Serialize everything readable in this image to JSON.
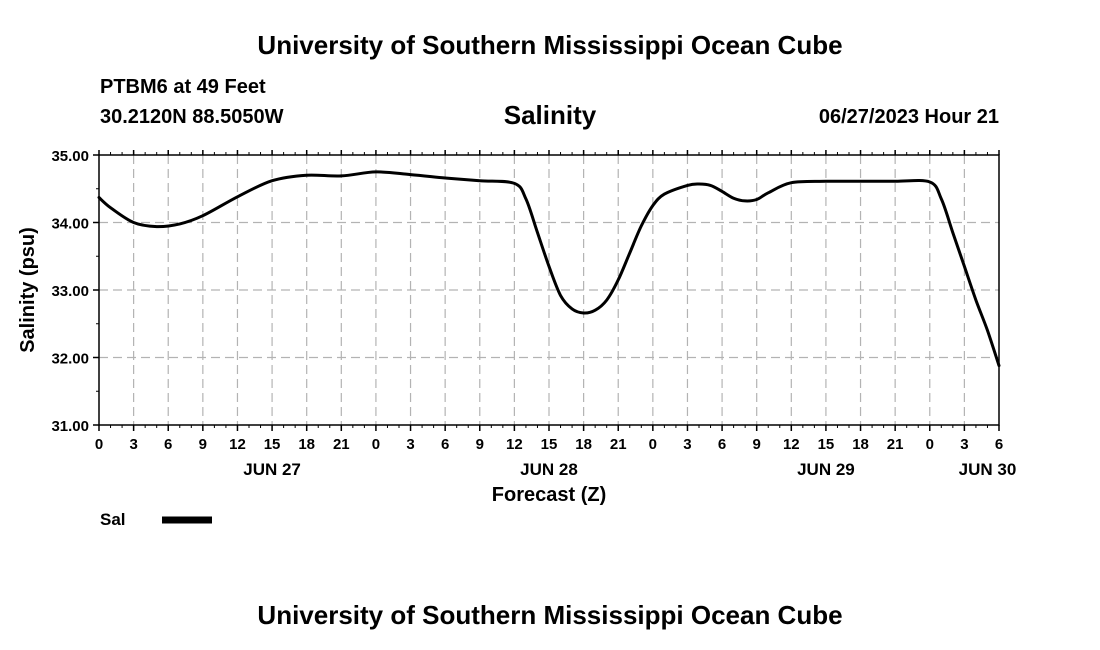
{
  "header": {
    "title": "University of Southern Mississippi Ocean Cube",
    "station": "PTBM6 at 49 Feet",
    "coords": "30.2120N  88.5050W",
    "datetime": "06/27/2023 Hour 21"
  },
  "footer": {
    "title": "University of Southern Mississippi Ocean Cube"
  },
  "legend": {
    "label": "Sal",
    "color": "#000000"
  },
  "chart_data": {
    "type": "line",
    "title": "Salinity",
    "xlabel": "Forecast (Z)",
    "ylabel": "Salinity (psu)",
    "xlim": [
      0,
      78
    ],
    "ylim": [
      31.0,
      35.0
    ],
    "grid": true,
    "y_ticks": [
      "31.00",
      "32.00",
      "33.00",
      "34.00",
      "35.00"
    ],
    "x_ticks": [
      "0",
      "3",
      "6",
      "9",
      "12",
      "15",
      "18",
      "21",
      "0",
      "3",
      "6",
      "9",
      "12",
      "15",
      "18",
      "21",
      "0",
      "3",
      "6",
      "9",
      "12",
      "15",
      "18",
      "21",
      "0",
      "3",
      "6"
    ],
    "date_labels": [
      {
        "hour": 15,
        "label": "JUN 27"
      },
      {
        "hour": 39,
        "label": "JUN 28"
      },
      {
        "hour": 63,
        "label": "JUN 29"
      },
      {
        "hour": 77,
        "label": "JUN 30"
      }
    ],
    "series": [
      {
        "name": "Sal",
        "x": [
          0,
          1,
          3,
          5,
          7,
          9,
          12,
          15,
          18,
          21,
          24,
          27,
          30,
          33,
          36,
          37,
          38,
          39,
          40,
          41,
          42,
          43,
          44,
          45,
          46,
          47,
          48,
          49,
          51,
          52,
          53,
          54,
          55,
          56,
          57,
          58,
          60,
          63,
          66,
          69,
          72,
          73,
          74,
          75,
          76,
          77,
          78
        ],
        "values": [
          34.37,
          34.22,
          34.0,
          33.94,
          33.98,
          34.1,
          34.38,
          34.62,
          34.7,
          34.69,
          34.75,
          34.71,
          34.66,
          34.62,
          34.58,
          34.35,
          33.85,
          33.35,
          32.92,
          32.72,
          32.66,
          32.7,
          32.85,
          33.15,
          33.55,
          33.95,
          34.25,
          34.42,
          34.55,
          34.57,
          34.55,
          34.46,
          34.36,
          34.32,
          34.34,
          34.44,
          34.59,
          34.61,
          34.61,
          34.61,
          34.6,
          34.35,
          33.85,
          33.35,
          32.85,
          32.4,
          31.88
        ]
      }
    ]
  }
}
